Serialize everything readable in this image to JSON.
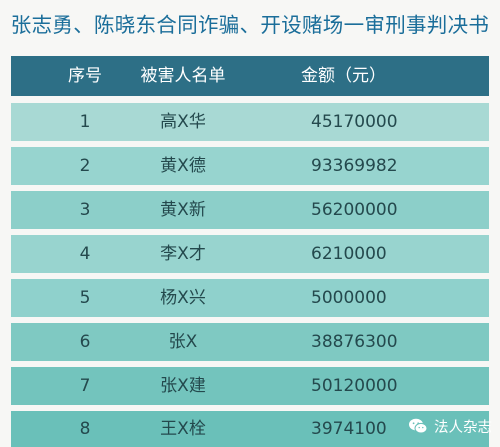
{
  "title": "张志勇、陈晓东合同诈骗、开设赌场一审刑事判决书",
  "table": {
    "headers": {
      "seq": "序号",
      "name": "被害人名单",
      "amount": "金额（元）"
    },
    "rows": [
      {
        "seq": "1",
        "name": "高X华",
        "amount": "45170000"
      },
      {
        "seq": "2",
        "name": "黄X德",
        "amount": "93369982"
      },
      {
        "seq": "3",
        "name": "黄X新",
        "amount": "56200000"
      },
      {
        "seq": "4",
        "name": "李X才",
        "amount": "6210000"
      },
      {
        "seq": "5",
        "name": "杨X兴",
        "amount": "5000000"
      },
      {
        "seq": "6",
        "name": "张X",
        "amount": "38876300"
      },
      {
        "seq": "7",
        "name": "张X建",
        "amount": "50120000"
      },
      {
        "seq": "8",
        "name": "王X栓",
        "amount": "3974100"
      }
    ]
  },
  "watermark": {
    "icon": "wechat-icon",
    "text": "法人杂志"
  }
}
